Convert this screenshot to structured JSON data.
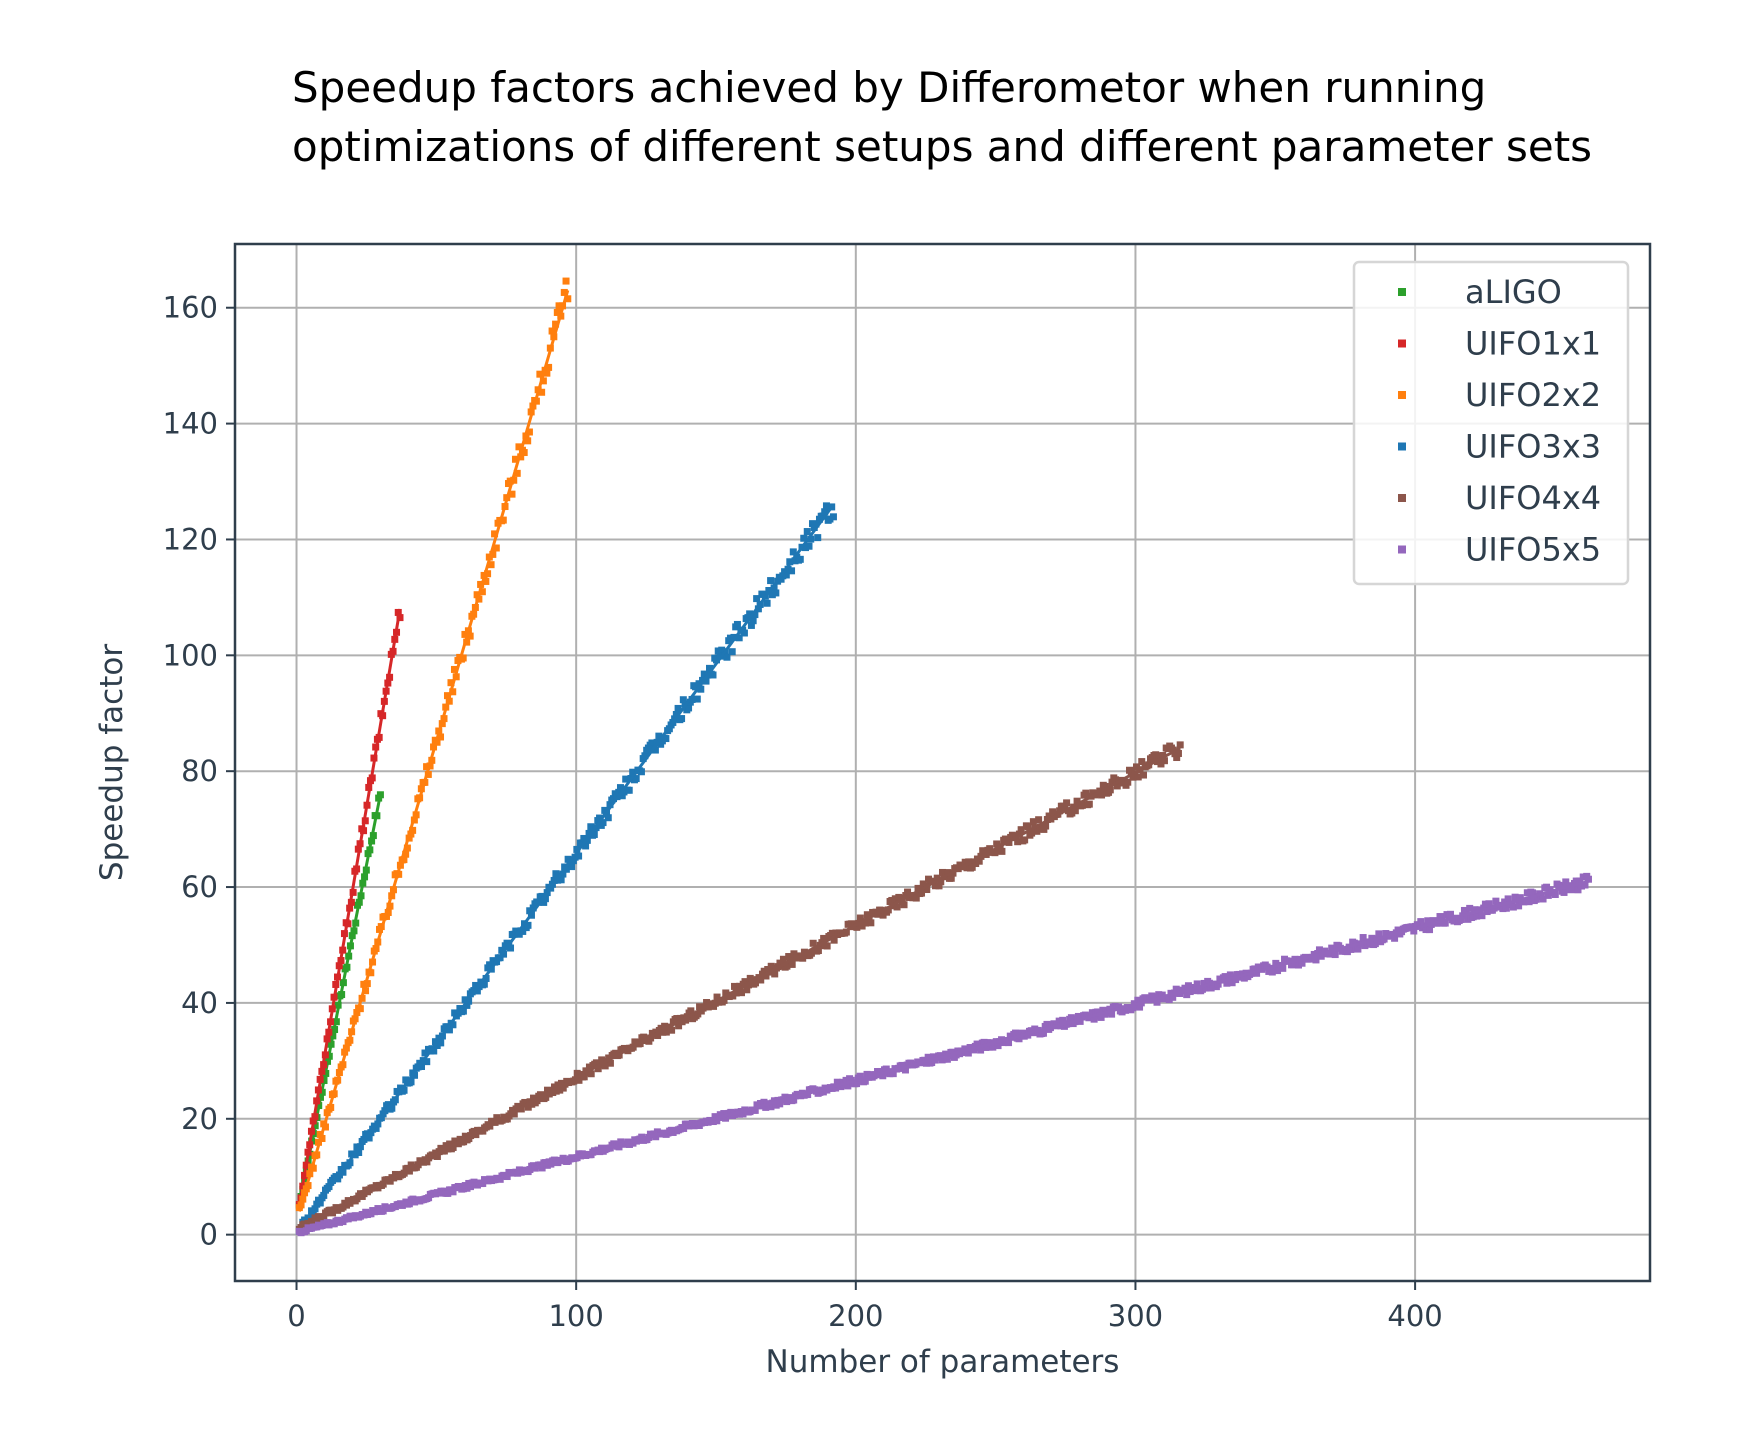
{
  "chart_data": {
    "type": "scatter",
    "title_lines": [
      "Speedup factors achieved by Differometor when running",
      "optimizations of different setups and different parameter sets"
    ],
    "xlabel": "Number of parameters",
    "ylabel": "Speedup factor",
    "xlim": [
      -22,
      484
    ],
    "ylim": [
      -8,
      171
    ],
    "xticks": [
      0,
      100,
      200,
      300,
      400
    ],
    "yticks": [
      0,
      20,
      40,
      60,
      80,
      100,
      120,
      140,
      160
    ],
    "grid": true,
    "legend_position": "top-right",
    "series": [
      {
        "name": "aLIGO",
        "color": "#2ca02c",
        "fit_color": "#2ca02c",
        "x": [
          1,
          30
        ],
        "y": [
          5,
          76
        ]
      },
      {
        "name": "UIFO1x1",
        "color": "#d62728",
        "fit_color": "#d62728",
        "x": [
          1,
          37
        ],
        "y": [
          5,
          108
        ]
      },
      {
        "name": "UIFO2x2",
        "color": "#ff7f0e",
        "fit_color": "#ff7f0e",
        "x": [
          1,
          97
        ],
        "y": [
          4,
          163
        ]
      },
      {
        "name": "UIFO3x3",
        "color": "#1f77b4",
        "fit_color": "#1f77b4",
        "x": [
          1,
          192
        ],
        "y": [
          1,
          126
        ]
      },
      {
        "name": "UIFO4x4",
        "color": "#8c564b",
        "fit_color": "#8c564b",
        "x": [
          1,
          316
        ],
        "y": [
          1,
          84
        ]
      },
      {
        "name": "UIFO5x5",
        "color": "#9467bd",
        "fit_color": "#9467bd",
        "x": [
          1,
          462
        ],
        "y": [
          0.5,
          61
        ]
      }
    ]
  }
}
